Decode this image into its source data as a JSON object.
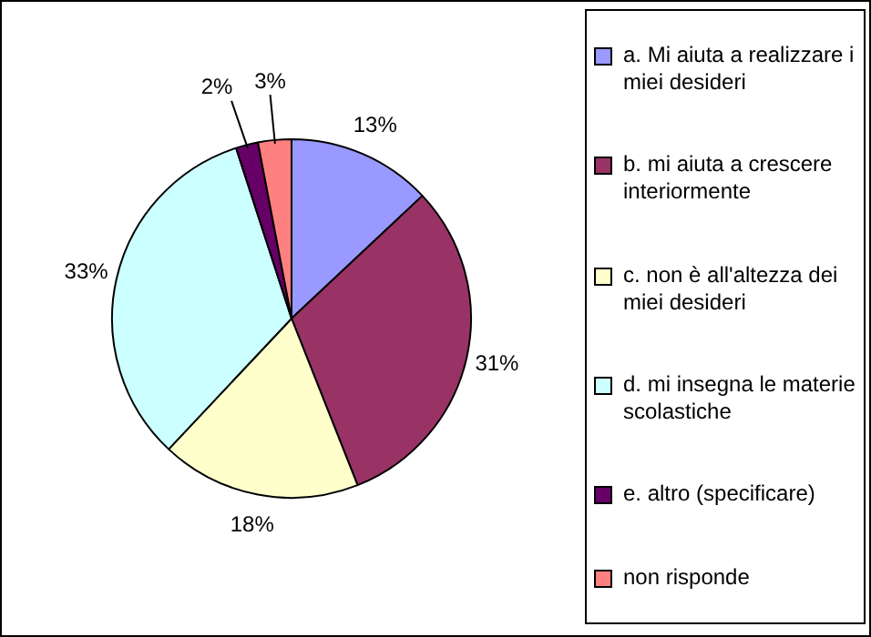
{
  "chart_data": {
    "type": "pie",
    "categories": [
      "a. Mi aiuta a realizzare i miei desideri",
      "b. mi aiuta a crescere interiormente",
      "c. non è all'altezza dei miei desideri",
      "d. mi insegna le materie scolastiche",
      "e. altro (specificare)",
      "non risponde"
    ],
    "values": [
      13,
      31,
      18,
      33,
      2,
      3
    ],
    "colors": [
      "#9999ff",
      "#993366",
      "#ffffcc",
      "#ccffff",
      "#660066",
      "#ff8080"
    ],
    "value_labels": [
      "13%",
      "31%",
      "18%",
      "33%",
      "2%",
      "3%"
    ],
    "legend": "right"
  }
}
